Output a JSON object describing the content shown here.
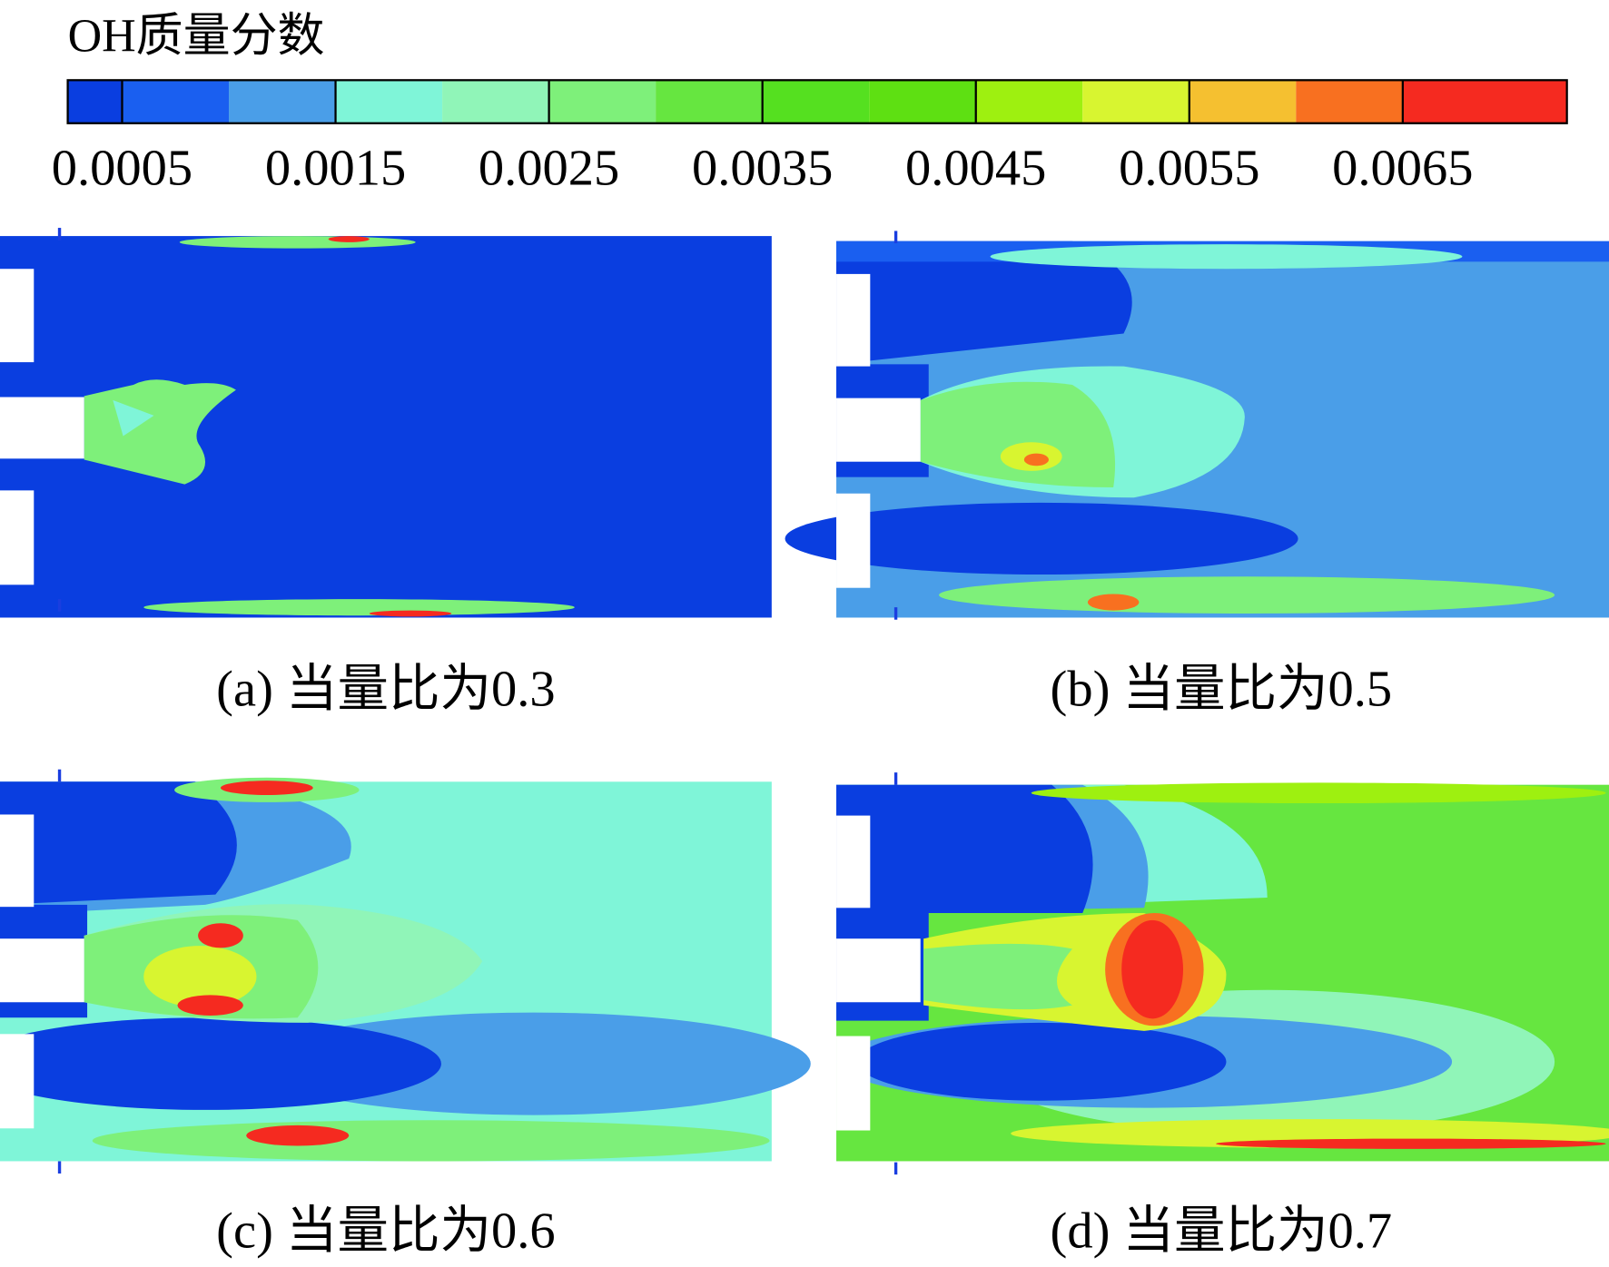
{
  "colorbar": {
    "title": "OH质量分数",
    "tick_labels": [
      "0.0005",
      "0.0015",
      "0.0025",
      "0.0035",
      "0.0045",
      "0.0055",
      "0.0065"
    ]
  },
  "panels": [
    {
      "caption": "(a) 当量比为0.3"
    },
    {
      "caption": "(b) 当量比为0.5"
    },
    {
      "caption": "(c) 当量比为0.6"
    },
    {
      "caption": "(d) 当量比为0.7"
    }
  ]
}
